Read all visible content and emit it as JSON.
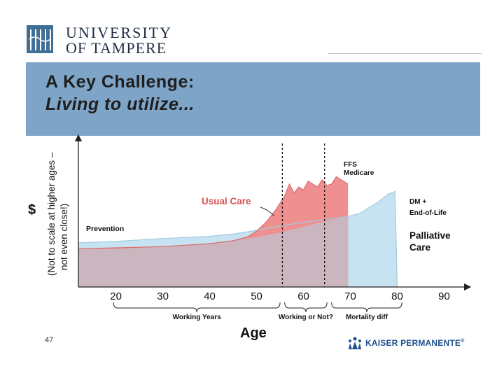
{
  "header": {
    "logo_line1": "UNIVERSITY",
    "logo_line2": "OF TAMPERE",
    "title": "A Key Challenge:",
    "subtitle": "Living to utilize..."
  },
  "footer": {
    "slide_number": "47",
    "brand": "KAISER PERMANENTE",
    "brand_mark": "®"
  },
  "colors": {
    "banner": "#7ea5c8",
    "palliative": "#c7e2f0",
    "usual_care": "#ef8f8f",
    "base": "#cbb6bf"
  },
  "chart_data": {
    "type": "area",
    "title": "",
    "xlabel": "Age",
    "ylabel": "$",
    "ylabel_note_line1": "(Not to scale at higher ages –",
    "ylabel_note_line2": "not even close!)",
    "xlim": [
      12,
      95
    ],
    "ylim": [
      0,
      100
    ],
    "x_ticks": [
      20,
      30,
      40,
      50,
      60,
      70,
      80,
      90
    ],
    "series": [
      {
        "name": "Prevention",
        "x": [
          12,
          20,
          30,
          40,
          45,
          50,
          55,
          60,
          65,
          69.5
        ],
        "values": [
          26,
          26,
          27.5,
          29.5,
          31.5,
          34,
          37,
          41,
          45,
          48
        ]
      },
      {
        "name": "Usual Care",
        "x": [
          12,
          30,
          40,
          45,
          48,
          50,
          52,
          54,
          56,
          57,
          58,
          59,
          60,
          61,
          62,
          63,
          64,
          65,
          66,
          67,
          68,
          69,
          69.5
        ],
        "values": [
          26,
          27.5,
          29.5,
          31.5,
          34,
          38,
          44,
          52,
          62,
          70,
          64,
          68,
          66,
          72,
          70,
          68,
          73,
          69,
          70,
          75,
          73,
          71,
          70
        ]
      },
      {
        "name": "Palliative Care",
        "x": [
          12,
          20,
          30,
          40,
          45,
          50,
          55,
          60,
          65,
          69.5,
          72,
          74,
          76,
          78,
          79.5,
          80
        ],
        "values": [
          30,
          31,
          33,
          34.5,
          36,
          38.5,
          41.5,
          44,
          46,
          48,
          50,
          54,
          58,
          63,
          65,
          0
        ]
      }
    ],
    "annotations": {
      "usual_care": "Usual Care",
      "prevention": "Prevention",
      "ffs_line1": "FFS",
      "ffs_line2": "Medicare",
      "dm_line1": "DM +",
      "dm_line2": "End-of-Life",
      "palliative_line1": "Palliative",
      "palliative_line2": "Care"
    },
    "divider_ages": [
      55.5,
      64.5
    ],
    "age_groups": [
      {
        "label": "Working Years",
        "from": 19.5,
        "to": 55
      },
      {
        "label": "Working or Not?",
        "from": 56,
        "to": 65
      },
      {
        "label": "Mortality diff",
        "from": 66,
        "to": 81
      }
    ]
  }
}
